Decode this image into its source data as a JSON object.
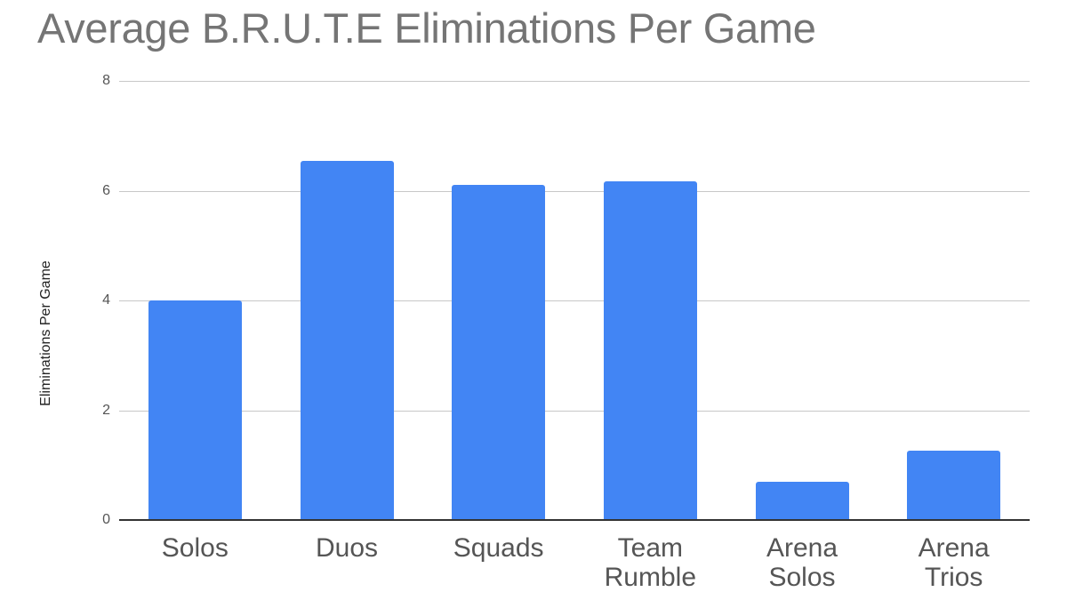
{
  "chart_data": {
    "type": "bar",
    "title": "Average B.R.U.T.E Eliminations Per Game",
    "xlabel": "",
    "ylabel": "Eliminations Per Game",
    "categories": [
      "Solos",
      "Duos",
      "Squads",
      "Team Rumble",
      "Arena Solos",
      "Arena Trios"
    ],
    "category_lines": [
      [
        "Solos"
      ],
      [
        "Duos"
      ],
      [
        "Squads"
      ],
      [
        "Team",
        "Rumble"
      ],
      [
        "Arena",
        "Solos"
      ],
      [
        "Arena",
        "Trios"
      ]
    ],
    "values": [
      4.0,
      6.55,
      6.1,
      6.17,
      0.7,
      1.26
    ],
    "ylim": [
      0,
      8
    ],
    "yticks": [
      0,
      2,
      4,
      6,
      8
    ],
    "grid": true,
    "legend": "none",
    "colors": {
      "bar": "#4285f4",
      "grid": "#c8c8c8",
      "title": "#757575"
    }
  }
}
